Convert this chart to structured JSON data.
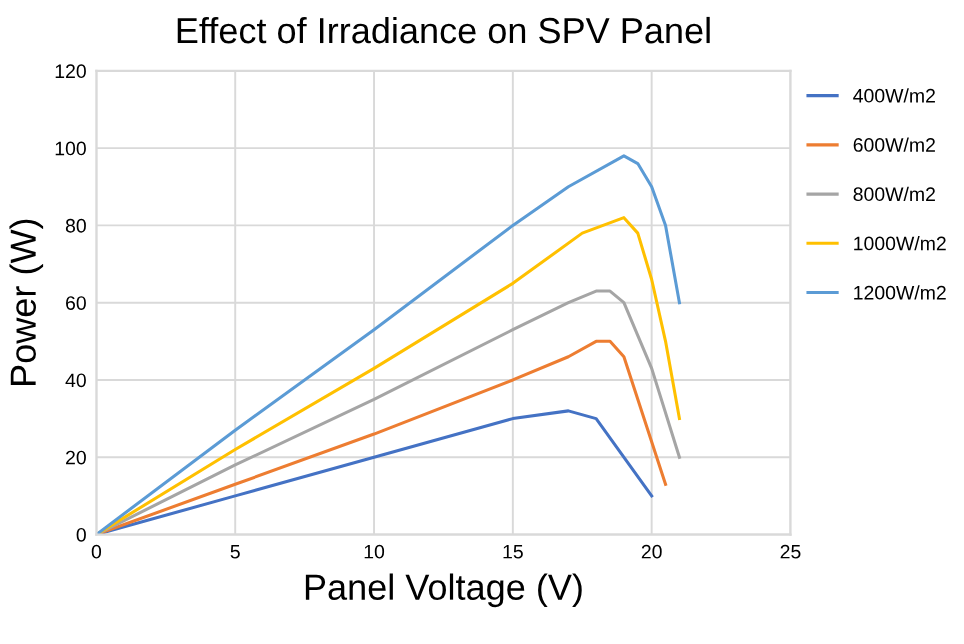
{
  "chart_data": {
    "type": "line",
    "title": "Effect of Irradiance on SPV Panel",
    "xlabel": "Panel Voltage (V)",
    "ylabel": "Power (W)",
    "xlim": [
      0,
      25
    ],
    "xticks": [
      0,
      5,
      10,
      15,
      20,
      25
    ],
    "ylim": [
      0,
      120
    ],
    "yticks": [
      0,
      20,
      40,
      60,
      80,
      100,
      120
    ],
    "grid": true,
    "legend": "right",
    "marker": "none",
    "series": [
      {
        "name": "400W/m2",
        "color": "#4472c4",
        "x": [
          0,
          5,
          10,
          15,
          17,
          18,
          20
        ],
        "values": [
          0,
          10,
          20,
          30,
          32,
          30,
          10
        ]
      },
      {
        "name": "600W/m2",
        "color": "#ed7d31",
        "x": [
          0,
          5,
          10,
          15,
          17,
          18,
          18.5,
          19,
          20.5
        ],
        "values": [
          0,
          13,
          26,
          40,
          46,
          50,
          50,
          46,
          13
        ]
      },
      {
        "name": "800W/m2",
        "color": "#a5a5a5",
        "x": [
          0,
          5,
          10,
          15,
          17,
          18,
          18.5,
          19,
          20,
          21
        ],
        "values": [
          0,
          18,
          35,
          53,
          60,
          63,
          63,
          60,
          43,
          20
        ]
      },
      {
        "name": "1000W/m2",
        "color": "#ffc000",
        "x": [
          0,
          5,
          10,
          15,
          17.5,
          19,
          19.5,
          20,
          20.5,
          21
        ],
        "values": [
          0,
          22,
          43,
          65,
          78,
          82,
          78,
          66,
          50,
          30
        ]
      },
      {
        "name": "1200W/m2",
        "color": "#5b9bd5",
        "x": [
          0,
          5,
          10,
          15,
          17,
          19,
          19.5,
          20,
          20.5,
          21
        ],
        "values": [
          0,
          27,
          53,
          80,
          90,
          98,
          96,
          90,
          80,
          60
        ]
      }
    ]
  }
}
